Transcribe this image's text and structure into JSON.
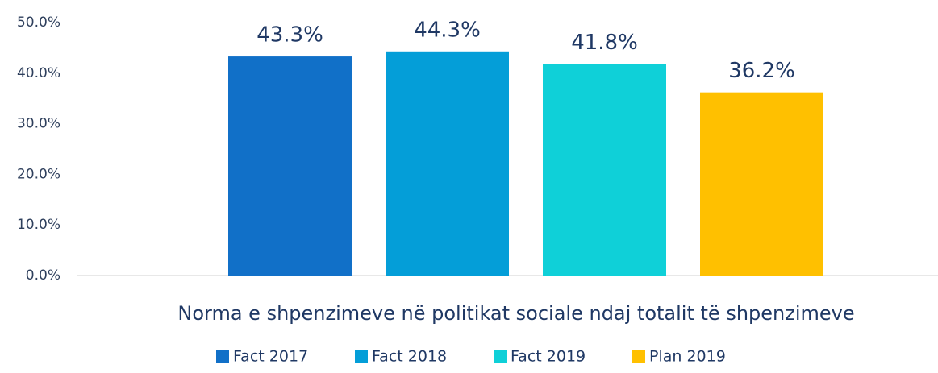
{
  "chart_data": {
    "type": "bar",
    "categories": [
      "Norma e shpenzimeve në politikat sociale ndaj totalit të shpenzimeve"
    ],
    "series": [
      {
        "name": "Fact 2017",
        "color": "#1170c8",
        "values": [
          43.3
        ],
        "value_labels": [
          "43.3%"
        ]
      },
      {
        "name": "Fact 2018",
        "color": "#049ed8",
        "values": [
          44.3
        ],
        "value_labels": [
          "44.3%"
        ]
      },
      {
        "name": "Fact 2019",
        "color": "#0fd0d8",
        "values": [
          41.8
        ],
        "value_labels": [
          "41.8%"
        ]
      },
      {
        "name": "Plan 2019",
        "color": "#ffc000",
        "values": [
          36.2
        ],
        "value_labels": [
          "36.2%"
        ]
      }
    ],
    "ylim": [
      0,
      50
    ],
    "yticks": [
      {
        "value": 0,
        "label": "0.0%"
      },
      {
        "value": 10,
        "label": "10.0%"
      },
      {
        "value": 20,
        "label": "20.0%"
      },
      {
        "value": 30,
        "label": "30.0%"
      },
      {
        "value": 40,
        "label": "40.0%"
      },
      {
        "value": 50,
        "label": "50.0%"
      }
    ],
    "legend": "bottom"
  }
}
